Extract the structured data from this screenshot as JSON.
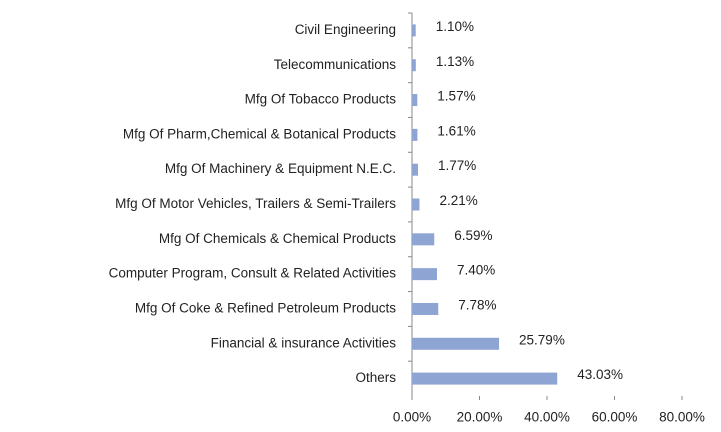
{
  "chart_data": {
    "type": "barh",
    "categories": [
      "Civil Engineering",
      "Telecommunications",
      "Mfg Of Tobacco Products",
      "Mfg Of Pharm,Chemical & Botanical Products",
      "Mfg Of Machinery & Equipment N.E.C.",
      "Mfg Of Motor Vehicles, Trailers & Semi-Trailers",
      "Mfg Of Chemicals & Chemical Products",
      "Computer Program, Consult & Related Activities",
      "Mfg Of Coke & Refined Petroleum Products",
      "Financial & insurance Activities",
      "Others"
    ],
    "values": [
      1.1,
      1.13,
      1.57,
      1.61,
      1.77,
      2.21,
      6.59,
      7.4,
      7.78,
      25.79,
      43.03
    ],
    "value_labels": [
      "1.10%",
      "1.13%",
      "1.57%",
      "1.61%",
      "1.77%",
      "2.21%",
      "6.59%",
      "7.40%",
      "7.78%",
      "25.79%",
      "43.03%"
    ],
    "color": "#8ea4d2",
    "xlim": [
      0,
      80
    ],
    "xticks": [
      {
        "value": 0,
        "label": "0.00%"
      },
      {
        "value": 20,
        "label": "20.00%"
      },
      {
        "value": 40,
        "label": "40.00%"
      },
      {
        "value": 60,
        "label": "60.00%"
      },
      {
        "value": 80,
        "label": "80.00%"
      }
    ],
    "grid": false
  }
}
